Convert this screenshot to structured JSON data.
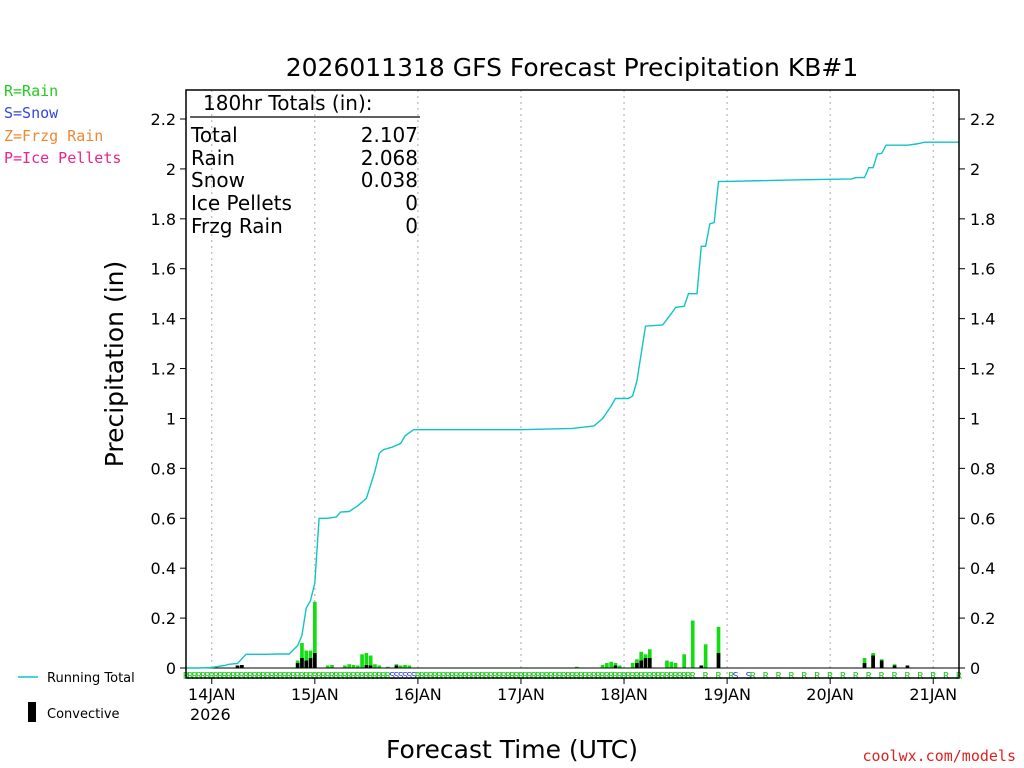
{
  "chart_data": {
    "type": "bar",
    "title": "2026011318 GFS Forecast Precipitation KB#1",
    "xlabel": "Forecast Time (UTC)",
    "ylabel": "Precipitation (in)",
    "ylim": [
      0,
      2.3
    ],
    "yticks": [
      {
        "value": 0,
        "label": "0"
      },
      {
        "value": 0.2,
        "label": "0.2"
      },
      {
        "value": 0.4,
        "label": "0.4"
      },
      {
        "value": 0.6,
        "label": "0.6"
      },
      {
        "value": 0.8,
        "label": "0.8"
      },
      {
        "value": 1.0,
        "label": "1"
      },
      {
        "value": 1.2,
        "label": "1.2"
      },
      {
        "value": 1.4,
        "label": "1.4"
      },
      {
        "value": 1.6,
        "label": "1.6"
      },
      {
        "value": 1.8,
        "label": "1.8"
      },
      {
        "value": 2.0,
        "label": "2"
      },
      {
        "value": 2.2,
        "label": "2.2"
      }
    ],
    "x_unit": "forecast hour",
    "xlim": [
      0,
      180
    ],
    "xticks": [
      {
        "hour": 6,
        "label": "14JAN"
      },
      {
        "hour": 30,
        "label": "15JAN"
      },
      {
        "hour": 54,
        "label": "16JAN"
      },
      {
        "hour": 78,
        "label": "17JAN"
      },
      {
        "hour": 102,
        "label": "18JAN"
      },
      {
        "hour": 126,
        "label": "19JAN"
      },
      {
        "hour": 150,
        "label": "20JAN"
      },
      {
        "hour": 174,
        "label": "21JAN"
      }
    ],
    "year_label": "2026",
    "totals_header": "180hr Totals (in):",
    "totals": [
      {
        "label": "Total",
        "value": "2.107"
      },
      {
        "label": "Rain",
        "value": "2.068"
      },
      {
        "label": "Snow",
        "value": "0.038"
      },
      {
        "label": "Ice Pellets",
        "value": "0"
      },
      {
        "label": "Frzg Rain",
        "value": "0"
      }
    ],
    "type_legend": [
      {
        "text": "R=Rain",
        "color": "#22cc22"
      },
      {
        "text": "S=Snow",
        "color": "#3344dd"
      },
      {
        "text": "Z=Frzg Rain",
        "color": "#ee8833"
      },
      {
        "text": "P=Ice Pellets",
        "color": "#ee2288"
      }
    ],
    "series": [
      {
        "name": "Running Total",
        "color": "#11c4c4",
        "points": [
          [
            0,
            0
          ],
          [
            3,
            0
          ],
          [
            6,
            0.002
          ],
          [
            9,
            0.01
          ],
          [
            10,
            0.015
          ],
          [
            12,
            0.018
          ],
          [
            14,
            0.055
          ],
          [
            18,
            0.055
          ],
          [
            22,
            0.056
          ],
          [
            24,
            0.056
          ],
          [
            26,
            0.09
          ],
          [
            27,
            0.13
          ],
          [
            28,
            0.24
          ],
          [
            29,
            0.27
          ],
          [
            30,
            0.34
          ],
          [
            31,
            0.6
          ],
          [
            33,
            0.6
          ],
          [
            35,
            0.605
          ],
          [
            36,
            0.625
          ],
          [
            38,
            0.627
          ],
          [
            40,
            0.65
          ],
          [
            42,
            0.68
          ],
          [
            44,
            0.79
          ],
          [
            45,
            0.86
          ],
          [
            46,
            0.875
          ],
          [
            48,
            0.885
          ],
          [
            50,
            0.9
          ],
          [
            51,
            0.93
          ],
          [
            53,
            0.955
          ],
          [
            56,
            0.955
          ],
          [
            60,
            0.955
          ],
          [
            78,
            0.955
          ],
          [
            90,
            0.96
          ],
          [
            95,
            0.97
          ],
          [
            97,
            1.0
          ],
          [
            99,
            1.05
          ],
          [
            100,
            1.08
          ],
          [
            103,
            1.08
          ],
          [
            104,
            1.09
          ],
          [
            105,
            1.15
          ],
          [
            106,
            1.26
          ],
          [
            107,
            1.37
          ],
          [
            111,
            1.375
          ],
          [
            113,
            1.42
          ],
          [
            114,
            1.445
          ],
          [
            116,
            1.45
          ],
          [
            117,
            1.5
          ],
          [
            119,
            1.5
          ],
          [
            120,
            1.69
          ],
          [
            121,
            1.69
          ],
          [
            122,
            1.78
          ],
          [
            123,
            1.785
          ],
          [
            124,
            1.95
          ],
          [
            126,
            1.95
          ],
          [
            140,
            1.955
          ],
          [
            155,
            1.96
          ],
          [
            156,
            1.965
          ],
          [
            158,
            1.965
          ],
          [
            159,
            2.005
          ],
          [
            160,
            2.005
          ],
          [
            161,
            2.06
          ],
          [
            162,
            2.062
          ],
          [
            163,
            2.095
          ],
          [
            165,
            2.095
          ],
          [
            168,
            2.095
          ],
          [
            170,
            2.1
          ],
          [
            171,
            2.103
          ],
          [
            172,
            2.107
          ],
          [
            180,
            2.107
          ]
        ]
      },
      {
        "name": "Convective",
        "color": "#000000",
        "points": [
          [
            12,
            0.01
          ],
          [
            13,
            0.012
          ],
          [
            26,
            0.02
          ],
          [
            27,
            0.04
          ],
          [
            28,
            0.03
          ],
          [
            29,
            0.04
          ],
          [
            30,
            0.06
          ],
          [
            42,
            0.012
          ],
          [
            43,
            0.01
          ],
          [
            49,
            0.01
          ],
          [
            100,
            0.01
          ],
          [
            105,
            0.02
          ],
          [
            106,
            0.03
          ],
          [
            107,
            0.04
          ],
          [
            108,
            0.04
          ],
          [
            120,
            0.01
          ],
          [
            124,
            0.06
          ],
          [
            158,
            0.02
          ],
          [
            160,
            0.05
          ],
          [
            162,
            0.03
          ],
          [
            165,
            0.01
          ],
          [
            168,
            0.01
          ]
        ]
      },
      {
        "name": "Precipitation",
        "color": "#11dd11",
        "points": [
          [
            12,
            0.01
          ],
          [
            13,
            0.012
          ],
          [
            26,
            0.03
          ],
          [
            27,
            0.1
          ],
          [
            28,
            0.07
          ],
          [
            29,
            0.07
          ],
          [
            30,
            0.265
          ],
          [
            33,
            0.01
          ],
          [
            34,
            0.012
          ],
          [
            37,
            0.01
          ],
          [
            38,
            0.015
          ],
          [
            39,
            0.012
          ],
          [
            40,
            0.01
          ],
          [
            41,
            0.055
          ],
          [
            42,
            0.06
          ],
          [
            43,
            0.05
          ],
          [
            44,
            0.015
          ],
          [
            45,
            0.01
          ],
          [
            47,
            0.005
          ],
          [
            49,
            0.015
          ],
          [
            50,
            0.01
          ],
          [
            51,
            0.012
          ],
          [
            52,
            0.01
          ],
          [
            91,
            0.005
          ],
          [
            97,
            0.012
          ],
          [
            98,
            0.02
          ],
          [
            99,
            0.025
          ],
          [
            100,
            0.02
          ],
          [
            101,
            0.01
          ],
          [
            104,
            0.02
          ],
          [
            105,
            0.035
          ],
          [
            106,
            0.065
          ],
          [
            107,
            0.055
          ],
          [
            108,
            0.075
          ],
          [
            112,
            0.03
          ],
          [
            113,
            0.025
          ],
          [
            114,
            0.02
          ],
          [
            116,
            0.055
          ],
          [
            118,
            0.19
          ],
          [
            121,
            0.095
          ],
          [
            124,
            0.165
          ],
          [
            158,
            0.04
          ],
          [
            160,
            0.06
          ],
          [
            162,
            0.035
          ],
          [
            165,
            0.015
          ]
        ]
      }
    ],
    "type_strip": [
      {
        "from": 0,
        "to": 47,
        "char": "R",
        "color": "#22cc22"
      },
      {
        "from": 48,
        "to": 53,
        "char": "S",
        "color": "#3344dd"
      },
      {
        "from": 54,
        "to": 117,
        "char": "R",
        "color": "#22cc22"
      },
      {
        "from": 118,
        "to": 127,
        "char": "R",
        "color": "#22cc22",
        "spaced": true
      },
      {
        "from": 128,
        "to": 131,
        "char": "S",
        "color": "#3344dd",
        "spaced": true
      },
      {
        "from": 132,
        "to": 180,
        "char": "R",
        "color": "#22cc22",
        "spaced": true
      }
    ],
    "legend": [
      {
        "name": "Running Total",
        "label": "Running Total"
      },
      {
        "name": "Convective",
        "label": "Convective"
      }
    ]
  },
  "credit": {
    "text": "coolwx.com/models",
    "color": "#dd2222"
  }
}
